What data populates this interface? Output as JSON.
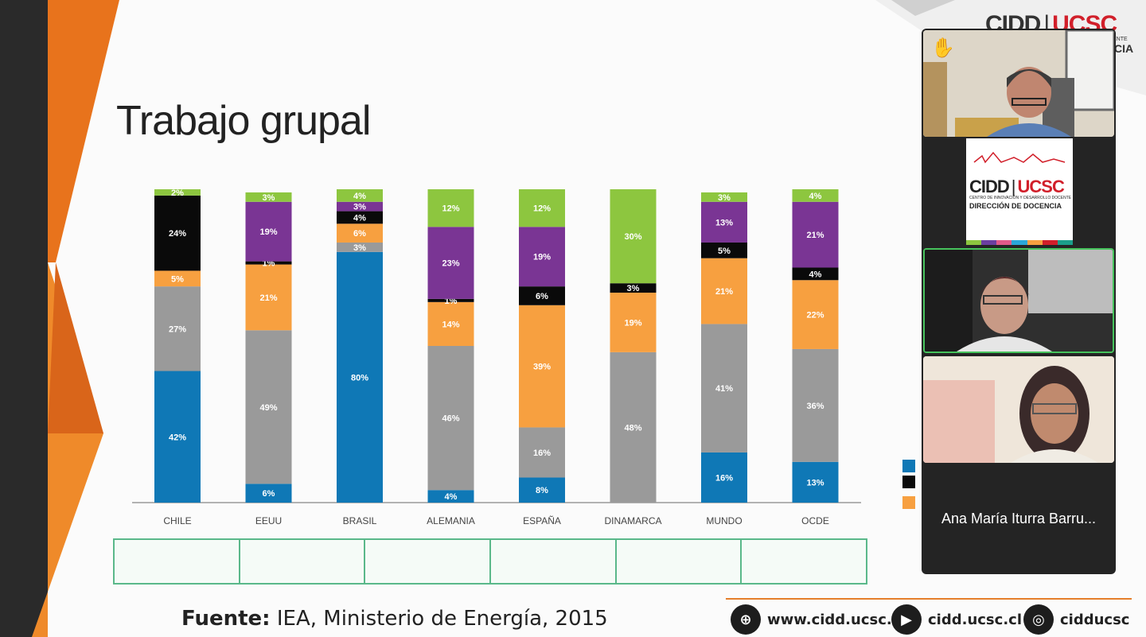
{
  "slide": {
    "title": "Trabajo grupal",
    "source_label": "Fuente:",
    "source_text": " IEA, Ministerio de Energía, 2015",
    "brand_left": "CIDD",
    "brand_sep": "|",
    "brand_right": "UCSC",
    "brand_sub": "CIA",
    "brand_sub_small": "ENTE"
  },
  "footer": {
    "web": "www.cidd.ucsc.cl",
    "youtube": "cidd.ucsc.cl",
    "instagram": "cidducsc"
  },
  "colors": {
    "blue": "#0f78b6",
    "gray": "#9a9a9a",
    "orange": "#f7a040",
    "black": "#0a0a0a",
    "purple": "#7a3594",
    "green": "#8dc63f",
    "accent": "#e57f2b",
    "table_border": "#5ab88a"
  },
  "chart_data": {
    "type": "bar",
    "stacked": true,
    "categories": [
      "CHILE",
      "EEUU",
      "BRASIL",
      "ALEMANIA",
      "ESPAÑA",
      "DINAMARCA",
      "MUNDO",
      "OCDE"
    ],
    "series": [
      {
        "color": "#0f78b6",
        "values": [
          42,
          6,
          80,
          4,
          8,
          0,
          16,
          13
        ],
        "labels": [
          "42%",
          "6%",
          "80%",
          "4%",
          "8%",
          "",
          "16%",
          "13%"
        ]
      },
      {
        "color": "#9a9a9a",
        "values": [
          27,
          49,
          3,
          46,
          16,
          48,
          41,
          36
        ],
        "labels": [
          "27%",
          "49%",
          "3%",
          "46%",
          "16%",
          "48%",
          "41%",
          "36%"
        ]
      },
      {
        "color": "#f7a040",
        "values": [
          5,
          21,
          6,
          14,
          39,
          19,
          21,
          22
        ],
        "labels": [
          "5%",
          "21%",
          "6%",
          "14%",
          "39%",
          "19%",
          "21%",
          "22%"
        ]
      },
      {
        "color": "#0a0a0a",
        "values": [
          24,
          1,
          4,
          1,
          6,
          3,
          5,
          4
        ],
        "labels": [
          "24%",
          "1%",
          "4%",
          "1%",
          "6%",
          "3%",
          "5%",
          "4%"
        ]
      },
      {
        "color": "#7a3594",
        "values": [
          0,
          19,
          3,
          23,
          19,
          0,
          13,
          21
        ],
        "labels": [
          "",
          "19%",
          "3%",
          "23%",
          "19%",
          "",
          "13%",
          "21%"
        ]
      },
      {
        "color": "#8dc63f",
        "values": [
          2,
          3,
          4,
          12,
          12,
          30,
          3,
          4
        ],
        "labels": [
          "2%",
          "3%",
          "4%",
          "12%",
          "12%",
          "30%",
          "3%",
          "4%"
        ]
      }
    ],
    "ylim": [
      0,
      100
    ],
    "grid": false
  },
  "video_panel": {
    "participant_name": "Ana María Iturra Barru...",
    "logo_brand_left": "CIDD",
    "logo_brand_right": "UCSC",
    "logo_sub": "CENTRO DE INNOVACIÓN Y DESARROLLO DOCENTE",
    "logo_dir": "DIRECCIÓN DE DOCENCIA",
    "raised_hand_icon": "✋"
  }
}
